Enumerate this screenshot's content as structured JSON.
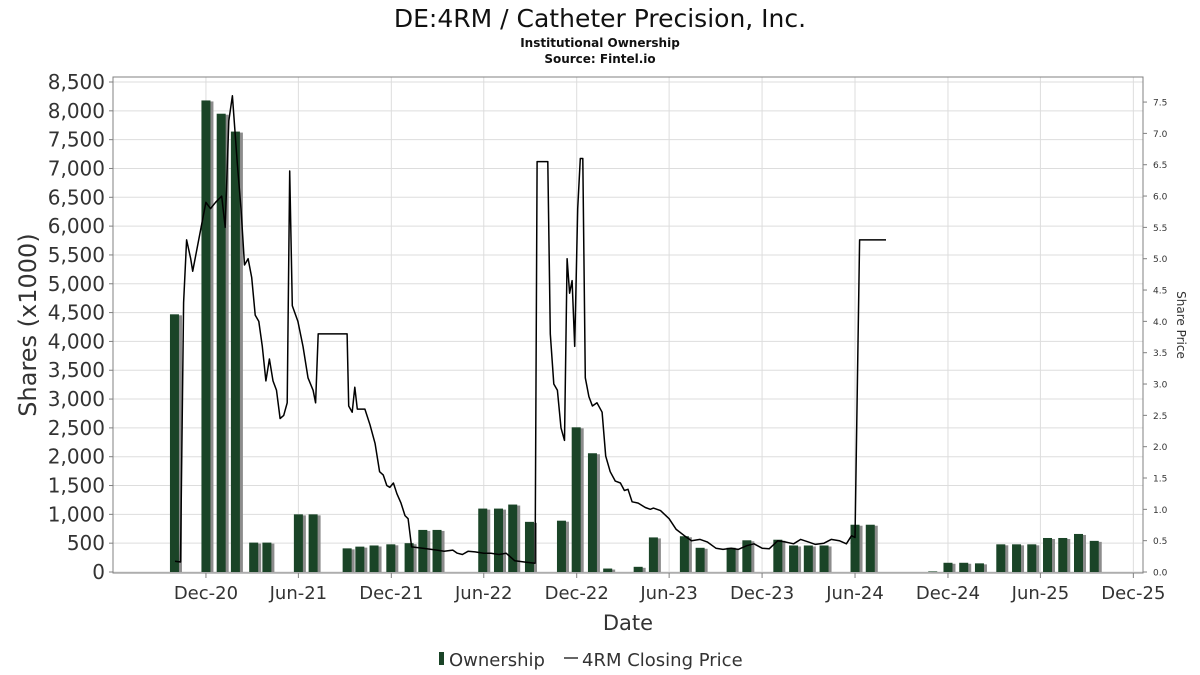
{
  "title": "DE:4RM / Catheter Precision, Inc.",
  "subtitle_1": "Institutional Ownership",
  "subtitle_2": "Source: Fintel.io",
  "colors": {
    "bar": "#1a4427",
    "bar_shadow": "#8c8c8c",
    "line": "#000000",
    "grid": "#dddddd",
    "axis": "#808080",
    "text": "#333333"
  },
  "chart_data": {
    "type": "bar",
    "title": "DE:4RM / Catheter Precision, Inc.",
    "xlabel": "Date",
    "ylabel": "Shares (x1000)",
    "y2label": "Share Price",
    "ylim": [
      0,
      8500
    ],
    "y2lim": [
      0,
      7.9
    ],
    "x_range": [
      "2020-06-01",
      "2025-12-20"
    ],
    "grid": true,
    "legend_position": "bottom",
    "x_ticks": [
      {
        "date": "2020-12-01",
        "label": "Dec-20"
      },
      {
        "date": "2021-06-01",
        "label": "Jun-21"
      },
      {
        "date": "2021-12-01",
        "label": "Dec-21"
      },
      {
        "date": "2022-06-01",
        "label": "Jun-22"
      },
      {
        "date": "2022-12-01",
        "label": "Dec-22"
      },
      {
        "date": "2023-06-01",
        "label": "Jun-23"
      },
      {
        "date": "2023-12-01",
        "label": "Dec-23"
      },
      {
        "date": "2024-06-01",
        "label": "Jun-24"
      },
      {
        "date": "2024-12-01",
        "label": "Dec-24"
      },
      {
        "date": "2025-06-01",
        "label": "Jun-25"
      },
      {
        "date": "2025-12-01",
        "label": "Dec-25"
      }
    ],
    "y_ticks": [
      "0",
      "500",
      "1,000",
      "1,500",
      "2,000",
      "2,500",
      "3,000",
      "3,500",
      "4,000",
      "4,500",
      "5,000",
      "5,500",
      "6,000",
      "6,500",
      "7,000",
      "7,500",
      "8,000",
      "8,500"
    ],
    "y_tick_values": [
      0,
      500,
      1000,
      1500,
      2000,
      2500,
      3000,
      3500,
      4000,
      4500,
      5000,
      5500,
      6000,
      6500,
      7000,
      7500,
      8000,
      8500
    ],
    "y2_ticks": [
      "0.0",
      "0.5",
      "1.0",
      "1.5",
      "2.0",
      "2.5",
      "3.0",
      "3.5",
      "4.0",
      "4.5",
      "5.0",
      "5.5",
      "6.0",
      "6.5",
      "7.0",
      "7.5"
    ],
    "y2_tick_values": [
      0,
      0.5,
      1.0,
      1.5,
      2.0,
      2.5,
      3.0,
      3.5,
      4.0,
      4.5,
      5.0,
      5.5,
      6.0,
      6.5,
      7.0,
      7.5
    ],
    "legend": [
      "Ownership",
      "4RM Closing Price"
    ],
    "series": [
      {
        "name": "Ownership",
        "type": "bar",
        "points": [
          {
            "x": "2020-09-30",
            "y": 4470
          },
          {
            "x": "2020-12-01",
            "y": 8180
          },
          {
            "x": "2020-12-31",
            "y": 7950
          },
          {
            "x": "2021-01-28",
            "y": 7640
          },
          {
            "x": "2021-03-05",
            "y": 510
          },
          {
            "x": "2021-03-31",
            "y": 510
          },
          {
            "x": "2021-06-01",
            "y": 1000
          },
          {
            "x": "2021-06-30",
            "y": 1000
          },
          {
            "x": "2021-09-05",
            "y": 410
          },
          {
            "x": "2021-09-30",
            "y": 440
          },
          {
            "x": "2021-10-28",
            "y": 460
          },
          {
            "x": "2021-11-30",
            "y": 480
          },
          {
            "x": "2022-01-05",
            "y": 500
          },
          {
            "x": "2022-02-01",
            "y": 730
          },
          {
            "x": "2022-03-01",
            "y": 730
          },
          {
            "x": "2022-05-30",
            "y": 1100
          },
          {
            "x": "2022-06-30",
            "y": 1100
          },
          {
            "x": "2022-07-28",
            "y": 1170
          },
          {
            "x": "2022-08-30",
            "y": 870
          },
          {
            "x": "2022-11-01",
            "y": 890
          },
          {
            "x": "2022-11-30",
            "y": 2510
          },
          {
            "x": "2023-01-01",
            "y": 2060
          },
          {
            "x": "2023-01-31",
            "y": 60
          },
          {
            "x": "2023-04-01",
            "y": 90
          },
          {
            "x": "2023-05-01",
            "y": 600
          },
          {
            "x": "2023-07-01",
            "y": 620
          },
          {
            "x": "2023-08-01",
            "y": 420
          },
          {
            "x": "2023-10-01",
            "y": 420
          },
          {
            "x": "2023-11-01",
            "y": 550
          },
          {
            "x": "2024-01-01",
            "y": 560
          },
          {
            "x": "2024-02-01",
            "y": 460
          },
          {
            "x": "2024-03-01",
            "y": 460
          },
          {
            "x": "2024-04-01",
            "y": 460
          },
          {
            "x": "2024-06-01",
            "y": 820
          },
          {
            "x": "2024-07-01",
            "y": 820
          },
          {
            "x": "2024-11-01",
            "y": 10
          },
          {
            "x": "2024-12-01",
            "y": 160
          },
          {
            "x": "2025-01-01",
            "y": 160
          },
          {
            "x": "2025-02-01",
            "y": 150
          },
          {
            "x": "2025-03-15",
            "y": 480
          },
          {
            "x": "2025-04-15",
            "y": 480
          },
          {
            "x": "2025-05-15",
            "y": 480
          },
          {
            "x": "2025-06-15",
            "y": 590
          },
          {
            "x": "2025-07-15",
            "y": 590
          },
          {
            "x": "2025-08-15",
            "y": 660
          },
          {
            "x": "2025-09-15",
            "y": 540
          }
        ]
      },
      {
        "name": "4RM Closing Price",
        "type": "line",
        "points": [
          {
            "x": "2020-10-01",
            "y": 0.17
          },
          {
            "x": "2020-10-12",
            "y": 0.16
          },
          {
            "x": "2020-10-18",
            "y": 4.3
          },
          {
            "x": "2020-10-24",
            "y": 5.3
          },
          {
            "x": "2020-11-01",
            "y": 5.0
          },
          {
            "x": "2020-11-05",
            "y": 4.8
          },
          {
            "x": "2020-12-01",
            "y": 5.9
          },
          {
            "x": "2020-12-10",
            "y": 5.8
          },
          {
            "x": "2020-12-20",
            "y": 5.9
          },
          {
            "x": "2021-01-01",
            "y": 6.0
          },
          {
            "x": "2021-01-08",
            "y": 5.5
          },
          {
            "x": "2021-01-15",
            "y": 7.2
          },
          {
            "x": "2021-01-22",
            "y": 7.6
          },
          {
            "x": "2021-02-01",
            "y": 6.5
          },
          {
            "x": "2021-02-08",
            "y": 5.8
          },
          {
            "x": "2021-02-15",
            "y": 4.9
          },
          {
            "x": "2021-02-22",
            "y": 5.0
          },
          {
            "x": "2021-03-01",
            "y": 4.7
          },
          {
            "x": "2021-03-08",
            "y": 4.1
          },
          {
            "x": "2021-03-15",
            "y": 4.0
          },
          {
            "x": "2021-03-22",
            "y": 3.6
          },
          {
            "x": "2021-03-29",
            "y": 3.05
          },
          {
            "x": "2021-04-05",
            "y": 3.4
          },
          {
            "x": "2021-04-12",
            "y": 3.05
          },
          {
            "x": "2021-04-19",
            "y": 2.9
          },
          {
            "x": "2021-04-26",
            "y": 2.45
          },
          {
            "x": "2021-05-03",
            "y": 2.5
          },
          {
            "x": "2021-05-10",
            "y": 2.7
          },
          {
            "x": "2021-05-15",
            "y": 6.4
          },
          {
            "x": "2021-05-20",
            "y": 4.25
          },
          {
            "x": "2021-05-31",
            "y": 4.0
          },
          {
            "x": "2021-06-10",
            "y": 3.6
          },
          {
            "x": "2021-06-20",
            "y": 3.1
          },
          {
            "x": "2021-06-30",
            "y": 2.9
          },
          {
            "x": "2021-07-05",
            "y": 2.7
          },
          {
            "x": "2021-07-10",
            "y": 3.8
          },
          {
            "x": "2021-08-15",
            "y": 3.8
          },
          {
            "x": "2021-09-05",
            "y": 3.8
          },
          {
            "x": "2021-09-08",
            "y": 2.65
          },
          {
            "x": "2021-09-15",
            "y": 2.55
          },
          {
            "x": "2021-09-20",
            "y": 2.95
          },
          {
            "x": "2021-09-25",
            "y": 2.6
          },
          {
            "x": "2021-10-01",
            "y": 2.6
          },
          {
            "x": "2021-10-10",
            "y": 2.6
          },
          {
            "x": "2021-10-20",
            "y": 2.35
          },
          {
            "x": "2021-10-30",
            "y": 2.05
          },
          {
            "x": "2021-11-08",
            "y": 1.6
          },
          {
            "x": "2021-11-15",
            "y": 1.55
          },
          {
            "x": "2021-11-22",
            "y": 1.38
          },
          {
            "x": "2021-11-28",
            "y": 1.35
          },
          {
            "x": "2021-12-05",
            "y": 1.42
          },
          {
            "x": "2021-12-12",
            "y": 1.25
          },
          {
            "x": "2021-12-20",
            "y": 1.1
          },
          {
            "x": "2021-12-28",
            "y": 0.9
          },
          {
            "x": "2022-01-03",
            "y": 0.85
          },
          {
            "x": "2022-01-10",
            "y": 0.4
          },
          {
            "x": "2022-02-01",
            "y": 0.38
          },
          {
            "x": "2022-03-01",
            "y": 0.35
          },
          {
            "x": "2022-03-15",
            "y": 0.33
          },
          {
            "x": "2022-04-01",
            "y": 0.35
          },
          {
            "x": "2022-04-10",
            "y": 0.3
          },
          {
            "x": "2022-04-20",
            "y": 0.28
          },
          {
            "x": "2022-05-01",
            "y": 0.33
          },
          {
            "x": "2022-05-15",
            "y": 0.32
          },
          {
            "x": "2022-06-01",
            "y": 0.3
          },
          {
            "x": "2022-06-15",
            "y": 0.3
          },
          {
            "x": "2022-07-01",
            "y": 0.28
          },
          {
            "x": "2022-07-15",
            "y": 0.3
          },
          {
            "x": "2022-08-01",
            "y": 0.18
          },
          {
            "x": "2022-08-20",
            "y": 0.16
          },
          {
            "x": "2022-09-10",
            "y": 0.14
          },
          {
            "x": "2022-09-14",
            "y": 6.55
          },
          {
            "x": "2022-10-05",
            "y": 6.55
          },
          {
            "x": "2022-10-10",
            "y": 3.8
          },
          {
            "x": "2022-10-17",
            "y": 3.0
          },
          {
            "x": "2022-10-24",
            "y": 2.9
          },
          {
            "x": "2022-10-31",
            "y": 2.3
          },
          {
            "x": "2022-11-07",
            "y": 2.1
          },
          {
            "x": "2022-11-12",
            "y": 5.0
          },
          {
            "x": "2022-11-17",
            "y": 4.45
          },
          {
            "x": "2022-11-22",
            "y": 4.65
          },
          {
            "x": "2022-11-27",
            "y": 3.6
          },
          {
            "x": "2022-12-03",
            "y": 5.8
          },
          {
            "x": "2022-12-08",
            "y": 6.6
          },
          {
            "x": "2022-12-13",
            "y": 6.6
          },
          {
            "x": "2022-12-18",
            "y": 3.1
          },
          {
            "x": "2022-12-25",
            "y": 2.8
          },
          {
            "x": "2023-01-01",
            "y": 2.65
          },
          {
            "x": "2023-01-10",
            "y": 2.7
          },
          {
            "x": "2023-01-20",
            "y": 2.55
          },
          {
            "x": "2023-01-27",
            "y": 1.85
          },
          {
            "x": "2023-02-05",
            "y": 1.6
          },
          {
            "x": "2023-02-15",
            "y": 1.45
          },
          {
            "x": "2023-02-25",
            "y": 1.42
          },
          {
            "x": "2023-03-05",
            "y": 1.3
          },
          {
            "x": "2023-03-12",
            "y": 1.32
          },
          {
            "x": "2023-03-20",
            "y": 1.12
          },
          {
            "x": "2023-04-01",
            "y": 1.1
          },
          {
            "x": "2023-04-15",
            "y": 1.03
          },
          {
            "x": "2023-04-25",
            "y": 1.0
          },
          {
            "x": "2023-05-01",
            "y": 1.02
          },
          {
            "x": "2023-05-15",
            "y": 0.98
          },
          {
            "x": "2023-06-01",
            "y": 0.85
          },
          {
            "x": "2023-06-15",
            "y": 0.68
          },
          {
            "x": "2023-07-01",
            "y": 0.58
          },
          {
            "x": "2023-07-15",
            "y": 0.5
          },
          {
            "x": "2023-08-01",
            "y": 0.52
          },
          {
            "x": "2023-08-15",
            "y": 0.48
          },
          {
            "x": "2023-09-01",
            "y": 0.38
          },
          {
            "x": "2023-09-15",
            "y": 0.36
          },
          {
            "x": "2023-10-01",
            "y": 0.38
          },
          {
            "x": "2023-10-15",
            "y": 0.36
          },
          {
            "x": "2023-11-01",
            "y": 0.42
          },
          {
            "x": "2023-11-15",
            "y": 0.45
          },
          {
            "x": "2023-12-01",
            "y": 0.38
          },
          {
            "x": "2023-12-15",
            "y": 0.37
          },
          {
            "x": "2024-01-01",
            "y": 0.5
          },
          {
            "x": "2024-01-15",
            "y": 0.48
          },
          {
            "x": "2024-02-01",
            "y": 0.45
          },
          {
            "x": "2024-02-15",
            "y": 0.52
          },
          {
            "x": "2024-03-01",
            "y": 0.48
          },
          {
            "x": "2024-03-15",
            "y": 0.44
          },
          {
            "x": "2024-04-01",
            "y": 0.46
          },
          {
            "x": "2024-04-15",
            "y": 0.52
          },
          {
            "x": "2024-05-01",
            "y": 0.5
          },
          {
            "x": "2024-05-15",
            "y": 0.45
          },
          {
            "x": "2024-05-25",
            "y": 0.58
          },
          {
            "x": "2024-06-01",
            "y": 0.55
          },
          {
            "x": "2024-06-10",
            "y": 5.3
          },
          {
            "x": "2024-08-01",
            "y": 5.3
          }
        ]
      }
    ]
  }
}
